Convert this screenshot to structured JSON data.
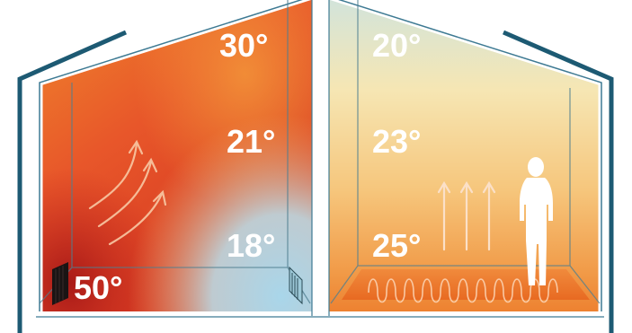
{
  "colors": {
    "house_outline": "#1d5a73",
    "inner_wall": "#3e7a93",
    "hot_red": "#c8281e",
    "warm_orange": "#ee7423",
    "cool_blue": "#a9d6ea",
    "pale_yellow": "#f7e3a3",
    "label": "#ffffff"
  },
  "left_room": {
    "temps": {
      "top": "30°",
      "middle": "21°",
      "bottom": "18°",
      "radiator": "50°"
    },
    "arrows": "curved-warm-air-arrows",
    "heater": "radiator-icon"
  },
  "right_room": {
    "temps": {
      "top": "20°",
      "middle": "23°",
      "bottom": "25°"
    },
    "arrows": "rising-heat-arrows",
    "floor": "underfloor-heating-coil",
    "person": "person-silhouette-icon"
  }
}
